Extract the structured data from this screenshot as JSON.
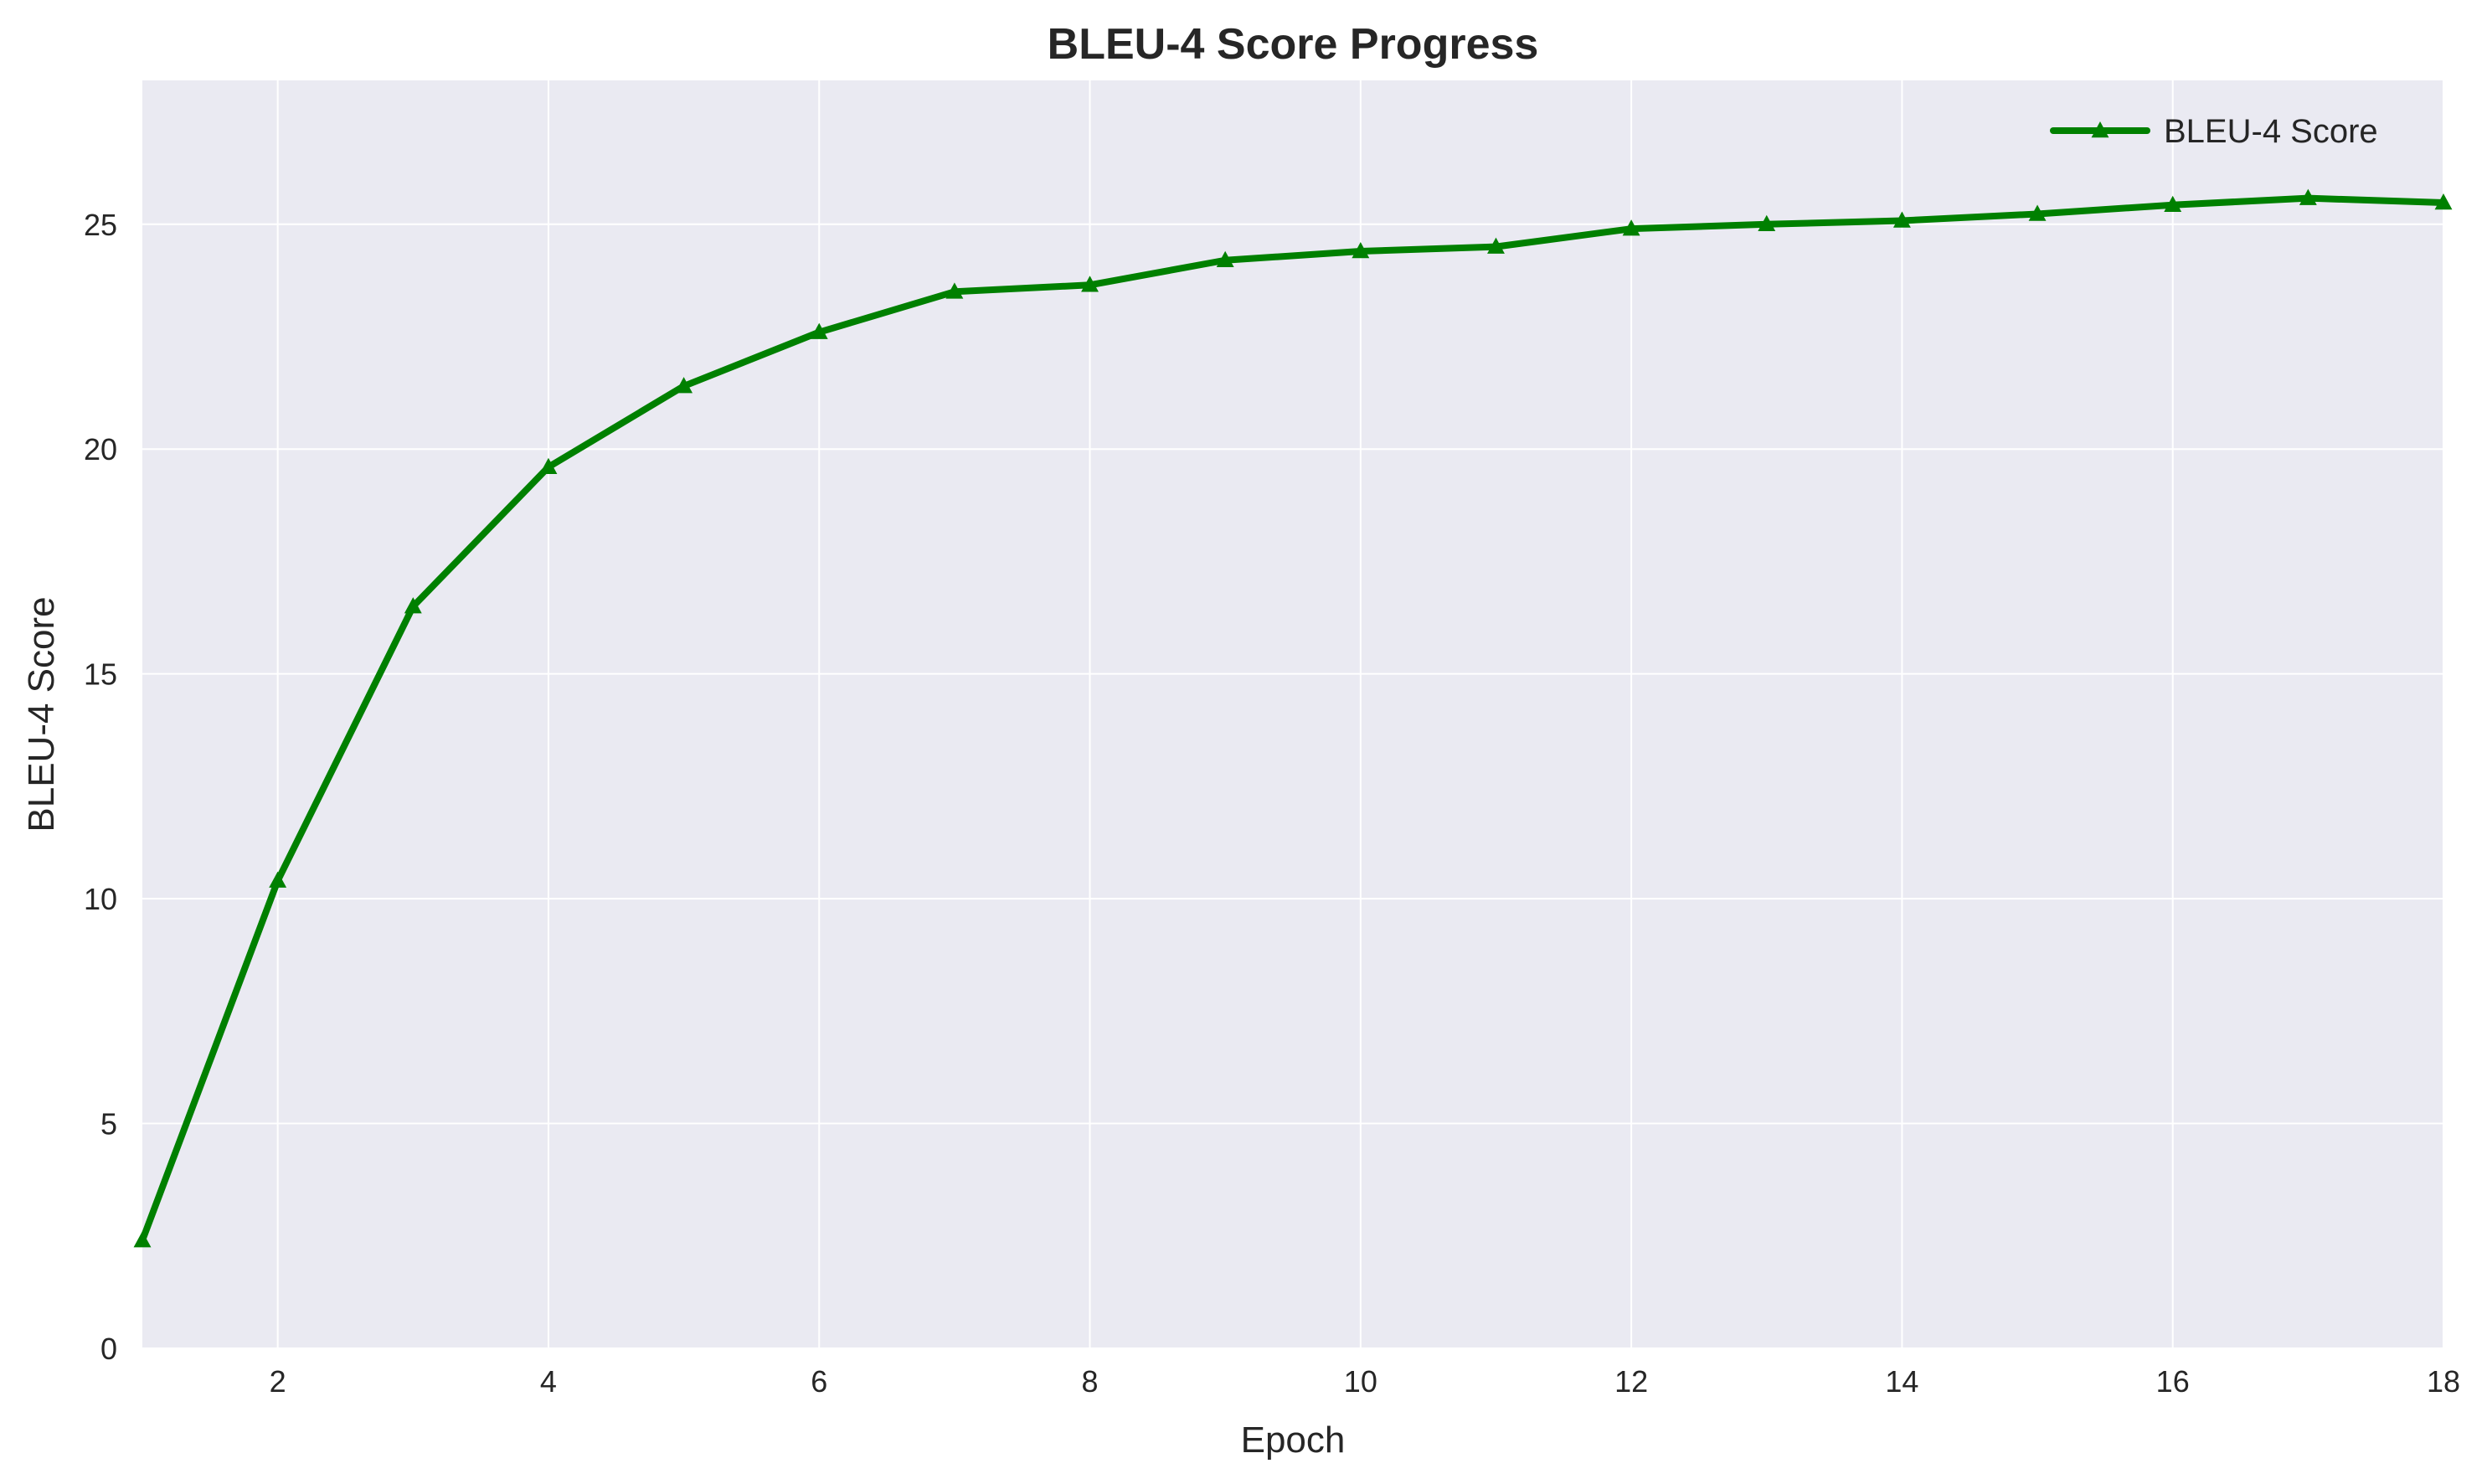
{
  "chart_data": {
    "type": "line",
    "title": "BLEU-4 Score Progress",
    "xlabel": "Epoch",
    "ylabel": "BLEU-4 Score",
    "xlim": [
      1,
      18
    ],
    "ylim": [
      0,
      28.2
    ],
    "xticks": [
      2,
      4,
      6,
      8,
      10,
      12,
      14,
      16,
      18
    ],
    "yticks": [
      0,
      5,
      10,
      15,
      20,
      25
    ],
    "grid": true,
    "legend_position": "top-right",
    "background_color": "#eaeaf2",
    "grid_color": "#ffffff",
    "series": [
      {
        "name": "BLEU-4 Score",
        "color": "#008000",
        "marker": "triangle-up",
        "x": [
          1,
          2,
          3,
          4,
          5,
          6,
          7,
          8,
          9,
          10,
          11,
          12,
          13,
          14,
          15,
          16,
          17,
          18
        ],
        "y": [
          2.4,
          10.4,
          16.5,
          19.6,
          21.4,
          22.6,
          23.5,
          23.65,
          24.2,
          24.4,
          24.5,
          24.9,
          25.0,
          25.08,
          25.23,
          25.43,
          25.58,
          25.48
        ]
      }
    ]
  }
}
